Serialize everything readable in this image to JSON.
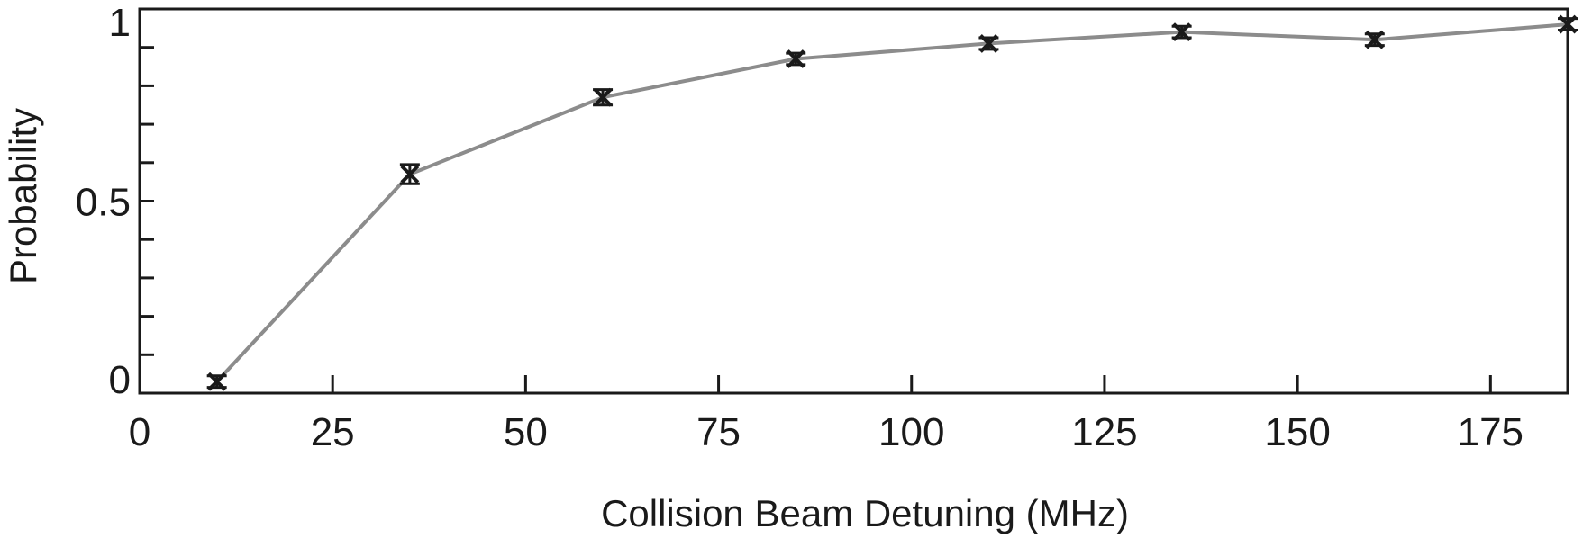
{
  "chart_data": {
    "type": "line",
    "title": "",
    "xlabel": "Collision Beam Detuning (MHz)",
    "ylabel": "Probability",
    "xlim": [
      0,
      185
    ],
    "ylim": [
      0,
      1
    ],
    "x_ticks": [
      0,
      25,
      50,
      75,
      100,
      125,
      150,
      175
    ],
    "x_tick_labels": [
      "0",
      "25",
      "50",
      "75",
      "100",
      "125",
      "150",
      "175"
    ],
    "y_ticks": [
      0,
      0.1,
      0.2,
      0.3,
      0.4,
      0.5,
      0.6,
      0.7,
      0.8,
      0.9,
      1.0
    ],
    "y_tick_labels": [
      "0",
      "",
      "",
      "",
      "",
      "0.5",
      "",
      "",
      "",
      "",
      "1"
    ],
    "grid": false,
    "legend": "none",
    "series": [
      {
        "x": [
          10,
          35,
          60,
          85,
          110,
          135,
          160,
          185
        ],
        "y": [
          0.03,
          0.57,
          0.77,
          0.87,
          0.91,
          0.94,
          0.92,
          0.96
        ],
        "yerr": [
          0.015,
          0.025,
          0.02,
          0.015,
          0.015,
          0.015,
          0.015,
          0.015
        ],
        "line_color": "#8c8c8c",
        "marker_color": "#1a1a1a",
        "marker": "x"
      }
    ]
  }
}
